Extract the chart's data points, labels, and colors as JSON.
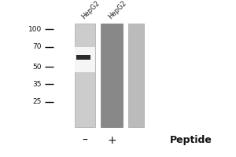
{
  "bg_color": "#ffffff",
  "lane1_color": "#cccccc",
  "lane1_bright_color": "#f5f5f5",
  "lane2_color": "#888888",
  "lane3_color": "#bbbbbb",
  "band_color": "#2a2a2a",
  "ladder_tick_color": "#111111",
  "mw_markers": [
    100,
    70,
    50,
    35,
    25
  ],
  "label1": "HepG2",
  "label2": "HepG2",
  "peptide_label": "Peptide",
  "minus_label": "–",
  "plus_label": "+"
}
